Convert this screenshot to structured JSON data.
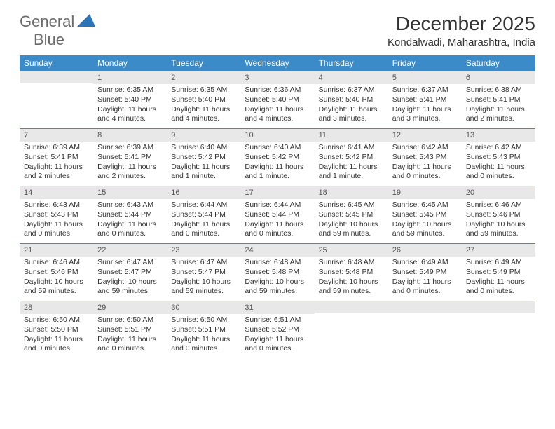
{
  "logo": {
    "text_a": "General",
    "text_b": "Blue"
  },
  "title": "December 2025",
  "location": "Kondalwadi, Maharashtra, India",
  "colors": {
    "header_bg": "#3b8bc8",
    "header_text": "#ffffff",
    "day_head_bg": "#e8e8e8",
    "border": "#3b8bc8",
    "text": "#333333"
  },
  "weekdays": [
    "Sunday",
    "Monday",
    "Tuesday",
    "Wednesday",
    "Thursday",
    "Friday",
    "Saturday"
  ],
  "weeks": [
    [
      null,
      {
        "n": "1",
        "sr": "Sunrise: 6:35 AM",
        "ss": "Sunset: 5:40 PM",
        "dl": "Daylight: 11 hours and 4 minutes."
      },
      {
        "n": "2",
        "sr": "Sunrise: 6:35 AM",
        "ss": "Sunset: 5:40 PM",
        "dl": "Daylight: 11 hours and 4 minutes."
      },
      {
        "n": "3",
        "sr": "Sunrise: 6:36 AM",
        "ss": "Sunset: 5:40 PM",
        "dl": "Daylight: 11 hours and 4 minutes."
      },
      {
        "n": "4",
        "sr": "Sunrise: 6:37 AM",
        "ss": "Sunset: 5:40 PM",
        "dl": "Daylight: 11 hours and 3 minutes."
      },
      {
        "n": "5",
        "sr": "Sunrise: 6:37 AM",
        "ss": "Sunset: 5:41 PM",
        "dl": "Daylight: 11 hours and 3 minutes."
      },
      {
        "n": "6",
        "sr": "Sunrise: 6:38 AM",
        "ss": "Sunset: 5:41 PM",
        "dl": "Daylight: 11 hours and 2 minutes."
      }
    ],
    [
      {
        "n": "7",
        "sr": "Sunrise: 6:39 AM",
        "ss": "Sunset: 5:41 PM",
        "dl": "Daylight: 11 hours and 2 minutes."
      },
      {
        "n": "8",
        "sr": "Sunrise: 6:39 AM",
        "ss": "Sunset: 5:41 PM",
        "dl": "Daylight: 11 hours and 2 minutes."
      },
      {
        "n": "9",
        "sr": "Sunrise: 6:40 AM",
        "ss": "Sunset: 5:42 PM",
        "dl": "Daylight: 11 hours and 1 minute."
      },
      {
        "n": "10",
        "sr": "Sunrise: 6:40 AM",
        "ss": "Sunset: 5:42 PM",
        "dl": "Daylight: 11 hours and 1 minute."
      },
      {
        "n": "11",
        "sr": "Sunrise: 6:41 AM",
        "ss": "Sunset: 5:42 PM",
        "dl": "Daylight: 11 hours and 1 minute."
      },
      {
        "n": "12",
        "sr": "Sunrise: 6:42 AM",
        "ss": "Sunset: 5:43 PM",
        "dl": "Daylight: 11 hours and 0 minutes."
      },
      {
        "n": "13",
        "sr": "Sunrise: 6:42 AM",
        "ss": "Sunset: 5:43 PM",
        "dl": "Daylight: 11 hours and 0 minutes."
      }
    ],
    [
      {
        "n": "14",
        "sr": "Sunrise: 6:43 AM",
        "ss": "Sunset: 5:43 PM",
        "dl": "Daylight: 11 hours and 0 minutes."
      },
      {
        "n": "15",
        "sr": "Sunrise: 6:43 AM",
        "ss": "Sunset: 5:44 PM",
        "dl": "Daylight: 11 hours and 0 minutes."
      },
      {
        "n": "16",
        "sr": "Sunrise: 6:44 AM",
        "ss": "Sunset: 5:44 PM",
        "dl": "Daylight: 11 hours and 0 minutes."
      },
      {
        "n": "17",
        "sr": "Sunrise: 6:44 AM",
        "ss": "Sunset: 5:44 PM",
        "dl": "Daylight: 11 hours and 0 minutes."
      },
      {
        "n": "18",
        "sr": "Sunrise: 6:45 AM",
        "ss": "Sunset: 5:45 PM",
        "dl": "Daylight: 10 hours and 59 minutes."
      },
      {
        "n": "19",
        "sr": "Sunrise: 6:45 AM",
        "ss": "Sunset: 5:45 PM",
        "dl": "Daylight: 10 hours and 59 minutes."
      },
      {
        "n": "20",
        "sr": "Sunrise: 6:46 AM",
        "ss": "Sunset: 5:46 PM",
        "dl": "Daylight: 10 hours and 59 minutes."
      }
    ],
    [
      {
        "n": "21",
        "sr": "Sunrise: 6:46 AM",
        "ss": "Sunset: 5:46 PM",
        "dl": "Daylight: 10 hours and 59 minutes."
      },
      {
        "n": "22",
        "sr": "Sunrise: 6:47 AM",
        "ss": "Sunset: 5:47 PM",
        "dl": "Daylight: 10 hours and 59 minutes."
      },
      {
        "n": "23",
        "sr": "Sunrise: 6:47 AM",
        "ss": "Sunset: 5:47 PM",
        "dl": "Daylight: 10 hours and 59 minutes."
      },
      {
        "n": "24",
        "sr": "Sunrise: 6:48 AM",
        "ss": "Sunset: 5:48 PM",
        "dl": "Daylight: 10 hours and 59 minutes."
      },
      {
        "n": "25",
        "sr": "Sunrise: 6:48 AM",
        "ss": "Sunset: 5:48 PM",
        "dl": "Daylight: 10 hours and 59 minutes."
      },
      {
        "n": "26",
        "sr": "Sunrise: 6:49 AM",
        "ss": "Sunset: 5:49 PM",
        "dl": "Daylight: 11 hours and 0 minutes."
      },
      {
        "n": "27",
        "sr": "Sunrise: 6:49 AM",
        "ss": "Sunset: 5:49 PM",
        "dl": "Daylight: 11 hours and 0 minutes."
      }
    ],
    [
      {
        "n": "28",
        "sr": "Sunrise: 6:50 AM",
        "ss": "Sunset: 5:50 PM",
        "dl": "Daylight: 11 hours and 0 minutes."
      },
      {
        "n": "29",
        "sr": "Sunrise: 6:50 AM",
        "ss": "Sunset: 5:51 PM",
        "dl": "Daylight: 11 hours and 0 minutes."
      },
      {
        "n": "30",
        "sr": "Sunrise: 6:50 AM",
        "ss": "Sunset: 5:51 PM",
        "dl": "Daylight: 11 hours and 0 minutes."
      },
      {
        "n": "31",
        "sr": "Sunrise: 6:51 AM",
        "ss": "Sunset: 5:52 PM",
        "dl": "Daylight: 11 hours and 0 minutes."
      },
      null,
      null,
      null
    ]
  ]
}
